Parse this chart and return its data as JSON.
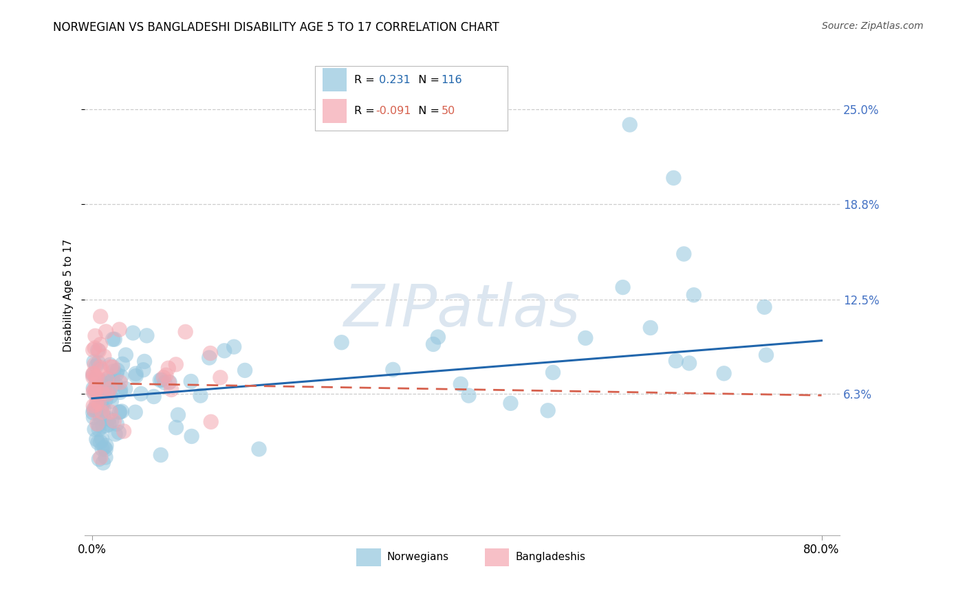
{
  "title": "NORWEGIAN VS BANGLADESHI DISABILITY AGE 5 TO 17 CORRELATION CHART",
  "source": "Source: ZipAtlas.com",
  "ylabel": "Disability Age 5 to 17",
  "ytick_labels": [
    "25.0%",
    "18.8%",
    "12.5%",
    "6.3%"
  ],
  "ytick_values": [
    0.25,
    0.188,
    0.125,
    0.063
  ],
  "xmin": 0.0,
  "xmax": 0.8,
  "ymin": -0.03,
  "ymax": 0.285,
  "norwegian_R": "0.231",
  "norwegian_N": "116",
  "bangladeshi_R": "-0.091",
  "bangladeshi_N": "50",
  "norwegian_color": "#92c5de",
  "bangladeshi_color": "#f4a6b0",
  "trend_norwegian_color": "#2166ac",
  "trend_bangladeshi_color": "#d6604d",
  "watermark_text": "ZIPatlas",
  "watermark_color": "#dce6f0",
  "title_fontsize": 12,
  "source_fontsize": 10,
  "axis_label_fontsize": 11,
  "tick_fontsize": 12,
  "nor_R_color": "#2166ac",
  "nor_N_color": "#2166ac",
  "ban_R_color": "#d6604d",
  "ban_N_color": "#d6604d",
  "norwegian_trend_start_y": 0.06,
  "norwegian_trend_end_y": 0.098,
  "bangladeshi_trend_start_y": 0.07,
  "bangladeshi_trend_end_y": 0.062
}
